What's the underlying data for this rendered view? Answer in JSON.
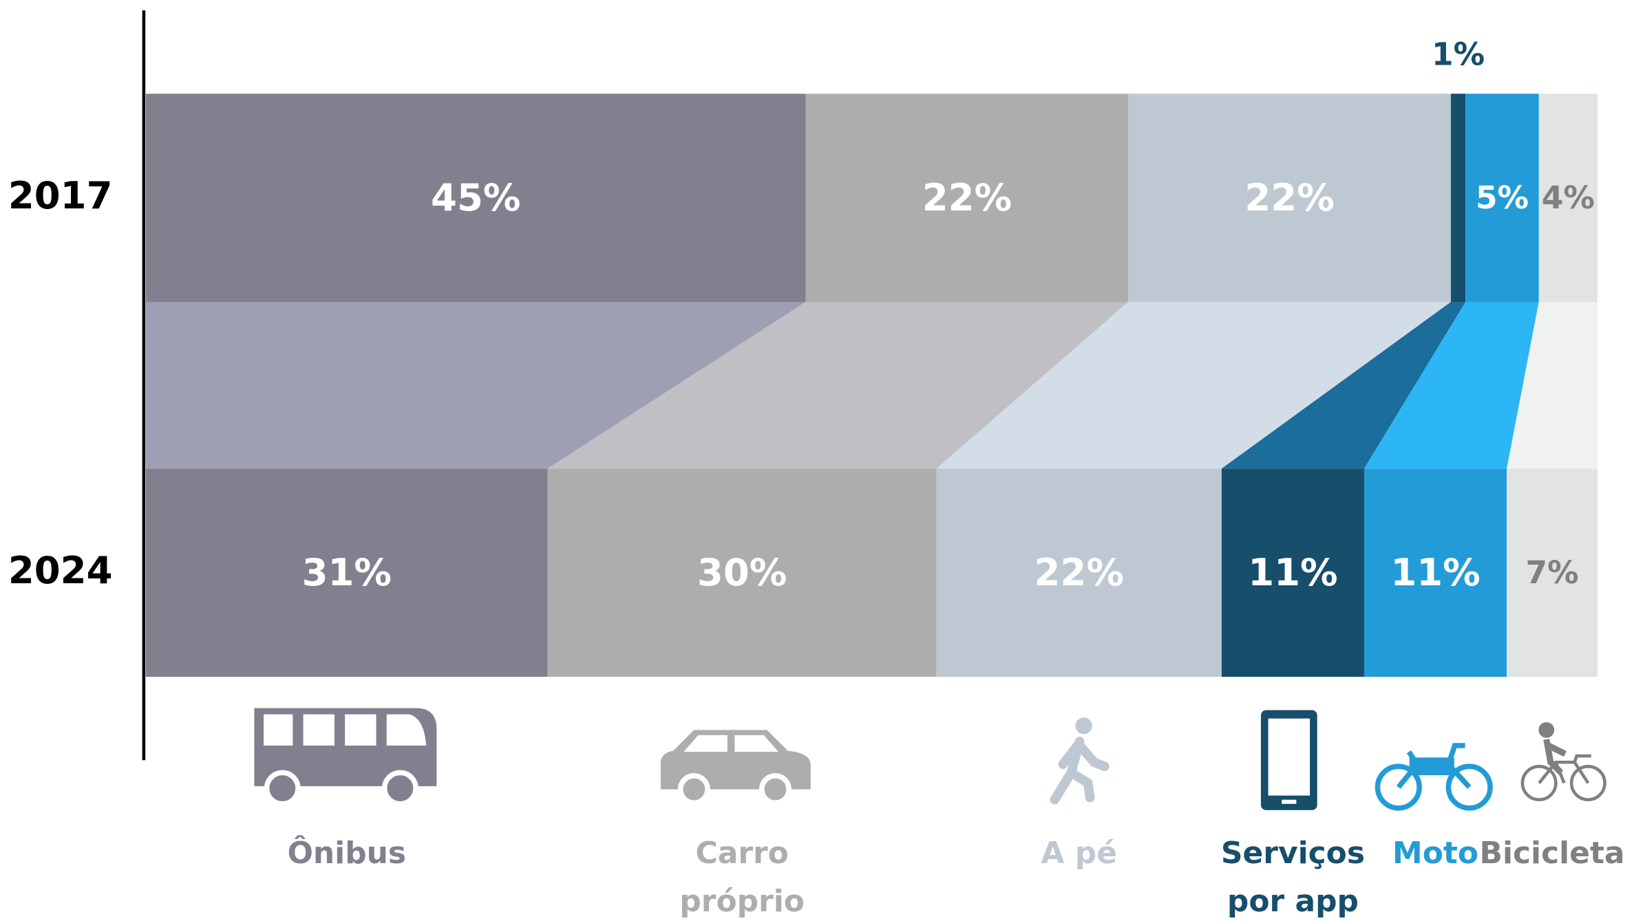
{
  "chart_data": {
    "type": "stacked_bar_100",
    "orientation": "horizontal",
    "categories": [
      "2017",
      "2024"
    ],
    "series": [
      {
        "name": "Ônibus",
        "color": "#82808f",
        "link_color": "#9e9fb3",
        "label_color": "#ffffff",
        "legend_color": "#82808f",
        "values": [
          45,
          31
        ],
        "value_labels": [
          "45%",
          "31%"
        ]
      },
      {
        "name": "Carro próprio",
        "color": "#adadad",
        "link_color": "#c0bfc4",
        "label_color": "#ffffff",
        "legend_color": "#adadad",
        "values": [
          22,
          30
        ],
        "value_labels": [
          "22%",
          "30%"
        ]
      },
      {
        "name": "A pé",
        "color": "#bec8d2",
        "link_color": "#d3dde7",
        "label_color": "#ffffff",
        "legend_color": "#bec8d2",
        "values": [
          22,
          22
        ],
        "value_labels": [
          "22%",
          "22%"
        ]
      },
      {
        "name": "Serviços por app",
        "color": "#164e6b",
        "link_color": "#1b6d9c",
        "label_color": "#ffffff",
        "legend_color": "#164e6b",
        "values": [
          1,
          11
        ],
        "value_labels": [
          "1%",
          "11%"
        ]
      },
      {
        "name": "Moto",
        "color": "#239bd6",
        "link_color": "#2cb6f5",
        "label_color": "#ffffff",
        "legend_color": "#239bd6",
        "values": [
          5,
          11
        ],
        "value_labels": [
          "5%",
          "11%"
        ]
      },
      {
        "name": "Bicicleta",
        "color": "#e1e4e1",
        "link_color": "#eff2ef",
        "label_color": "#808080",
        "legend_color": "#808080",
        "values": [
          4,
          7
        ],
        "value_labels": [
          "4%",
          "7%"
        ]
      }
    ]
  }
}
